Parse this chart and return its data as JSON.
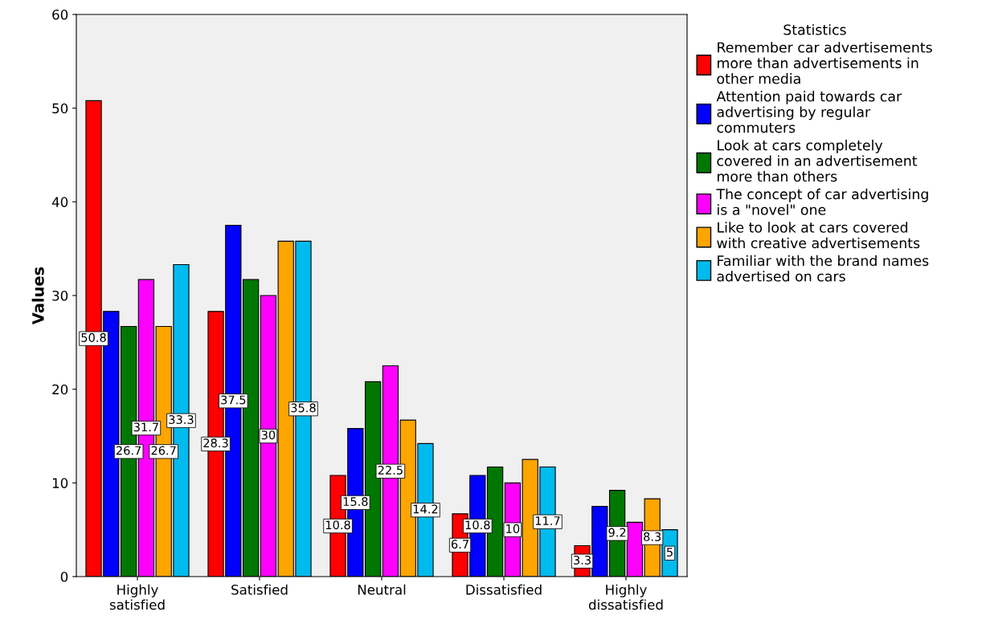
{
  "chart_data": {
    "type": "bar",
    "ylabel": "Values",
    "legend_title": "Statistics",
    "legend": "right",
    "grid": false,
    "categories": [
      "Highly\nsatisfied",
      "Satisfied",
      "Neutral",
      "Dissatisfied",
      "Highly\ndissatisfied"
    ],
    "ylim": [
      0,
      60
    ],
    "yticks": [
      0,
      10,
      20,
      30,
      40,
      50,
      60
    ],
    "series": [
      {
        "name": "Remember car advertisements more than advertisements in other media",
        "color": "#ff0000",
        "values": [
          50.8,
          28.3,
          10.8,
          6.7,
          3.3
        ],
        "value_labels": [
          "50.8",
          "28.3",
          "10.8",
          "6.7",
          "3.3"
        ]
      },
      {
        "name": "Attention paid towards car advertising by regular commuters",
        "color": "#0000ff",
        "values": [
          28.3,
          37.5,
          15.8,
          10.8,
          7.5
        ],
        "value_labels": [
          null,
          "37.5",
          "15.8",
          "10.8",
          null
        ]
      },
      {
        "name": "Look at cars completely covered in an advertisement more than others",
        "color": "#007700",
        "values": [
          26.7,
          31.7,
          20.8,
          11.7,
          9.2
        ],
        "value_labels": [
          "26.7",
          null,
          null,
          null,
          "9.2"
        ]
      },
      {
        "name": "The concept of car advertising is a \"novel\" one",
        "color": "#ff00ff",
        "values": [
          31.7,
          30,
          22.5,
          10,
          5.8
        ],
        "value_labels": [
          "31.7",
          "30",
          "22.5",
          "10",
          null
        ]
      },
      {
        "name": "Like to look at cars covered with creative advertisements",
        "color": "#ffa500",
        "values": [
          26.7,
          35.8,
          16.7,
          12.5,
          8.3
        ],
        "value_labels": [
          "26.7",
          null,
          null,
          null,
          "8.3"
        ]
      },
      {
        "name": "Familiar with the brand names advertised on cars",
        "color": "#00bbee",
        "values": [
          33.3,
          35.8,
          14.2,
          11.7,
          5
        ],
        "value_labels": [
          "33.3",
          "35.8",
          "14.2",
          "11.7",
          "5"
        ]
      }
    ]
  }
}
